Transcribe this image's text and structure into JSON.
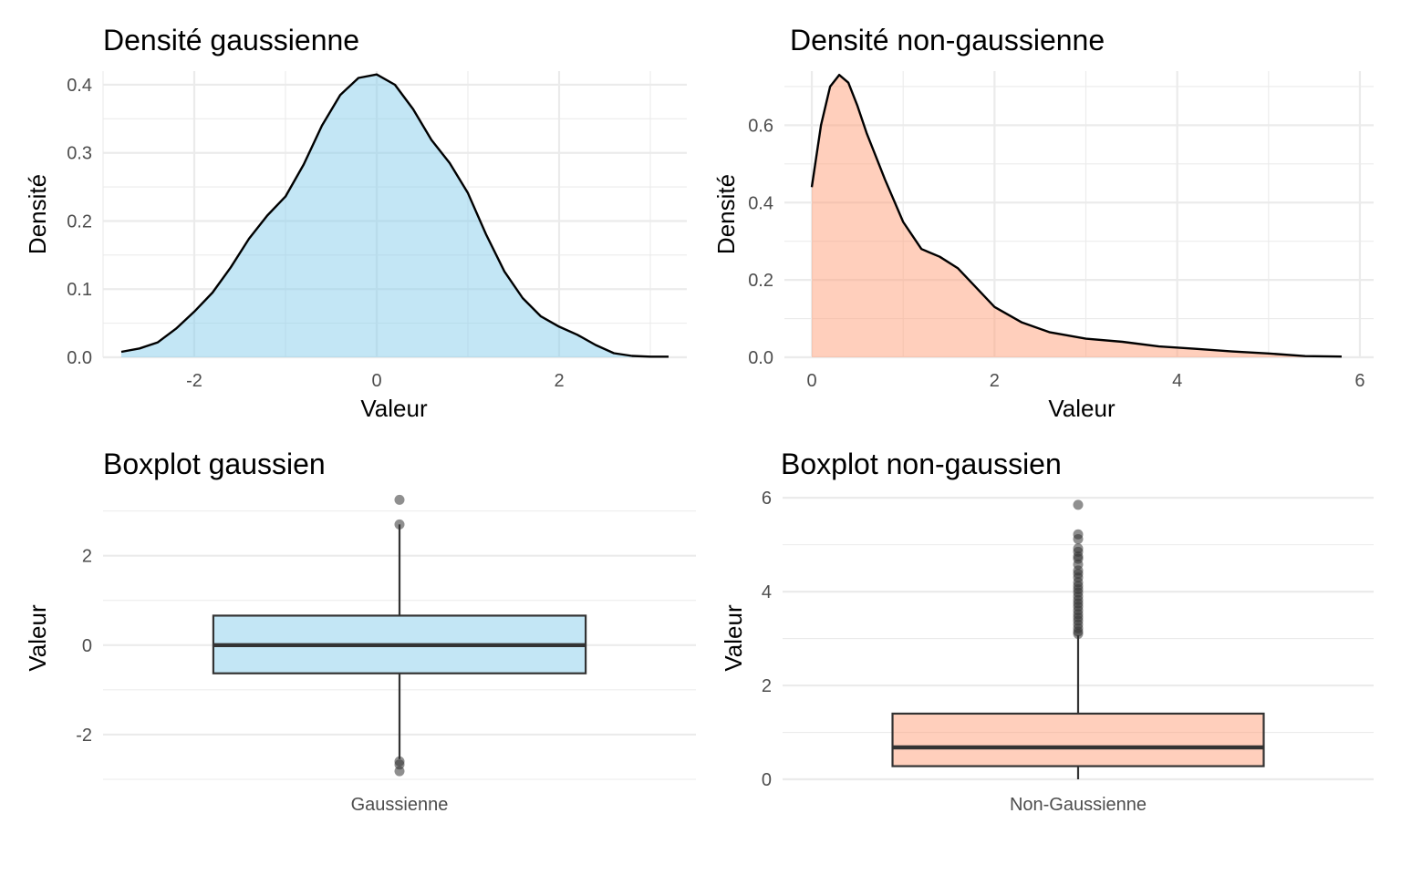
{
  "chart_data": [
    {
      "type": "area",
      "title": "Densité gaussienne",
      "xlabel": "Valeur",
      "ylabel": "Densité",
      "xlim": [
        -3.0,
        3.4
      ],
      "ylim": [
        0,
        0.42
      ],
      "x_ticks": [
        -2,
        0,
        2
      ],
      "x_tick_labels": [
        "-2",
        "0",
        "2"
      ],
      "y_ticks": [
        0.0,
        0.1,
        0.2,
        0.3,
        0.4
      ],
      "y_tick_labels": [
        "0.0",
        "0.1",
        "0.2",
        "0.3",
        "0.4"
      ],
      "fill_color": "#87CEEB",
      "grid": true,
      "series": [
        {
          "x": [
            -2.8,
            -2.6,
            -2.4,
            -2.2,
            -2.0,
            -1.8,
            -1.6,
            -1.4,
            -1.2,
            -1.0,
            -0.8,
            -0.6,
            -0.4,
            -0.2,
            0.0,
            0.2,
            0.4,
            0.6,
            0.8,
            1.0,
            1.2,
            1.4,
            1.6,
            1.8,
            2.0,
            2.2,
            2.4,
            2.6,
            2.8,
            3.0,
            3.2
          ],
          "y": [
            0.008,
            0.013,
            0.022,
            0.042,
            0.067,
            0.095,
            0.132,
            0.174,
            0.208,
            0.236,
            0.283,
            0.34,
            0.385,
            0.41,
            0.415,
            0.4,
            0.364,
            0.319,
            0.285,
            0.241,
            0.18,
            0.126,
            0.087,
            0.06,
            0.045,
            0.033,
            0.018,
            0.006,
            0.002,
            0.001,
            0.001
          ]
        }
      ]
    },
    {
      "type": "area",
      "title": "Densité non-gaussienne",
      "xlabel": "Valeur",
      "ylabel": "Densité",
      "xlim": [
        -0.3,
        6.15
      ],
      "ylim": [
        0,
        0.74
      ],
      "x_ticks": [
        0,
        2,
        4,
        6
      ],
      "x_tick_labels": [
        "0",
        "2",
        "4",
        "6"
      ],
      "y_ticks": [
        0.0,
        0.2,
        0.4,
        0.6
      ],
      "y_tick_labels": [
        "0.0",
        "0.2",
        "0.4",
        "0.6"
      ],
      "fill_color": "#FFA07A",
      "grid": true,
      "series": [
        {
          "x": [
            0.0,
            0.1,
            0.2,
            0.3,
            0.4,
            0.5,
            0.6,
            0.7,
            0.8,
            1.0,
            1.2,
            1.4,
            1.6,
            1.8,
            2.0,
            2.3,
            2.6,
            3.0,
            3.4,
            3.8,
            4.2,
            4.6,
            5.0,
            5.4,
            5.8
          ],
          "y": [
            0.44,
            0.6,
            0.7,
            0.73,
            0.71,
            0.65,
            0.58,
            0.52,
            0.46,
            0.35,
            0.28,
            0.26,
            0.23,
            0.18,
            0.13,
            0.09,
            0.065,
            0.048,
            0.04,
            0.028,
            0.022,
            0.015,
            0.01,
            0.003,
            0.002
          ]
        }
      ]
    },
    {
      "type": "boxplot",
      "title": "Boxplot gaussien",
      "xlabel": "",
      "ylabel": "Valeur",
      "ylim": [
        -3.0,
        3.4
      ],
      "y_ticks": [
        -2,
        0,
        2
      ],
      "y_tick_labels": [
        "-2",
        "0",
        "2"
      ],
      "categories": [
        "Gaussienne"
      ],
      "fill_color": "#87CEEB",
      "grid": true,
      "boxes": [
        {
          "category": "Gaussienne",
          "q1": -0.63,
          "median": 0.0,
          "q3": 0.66,
          "whisker_low": -2.55,
          "whisker_high": 2.7,
          "outliers": [
            3.25,
            2.7,
            -2.6,
            -2.67,
            -2.82
          ]
        }
      ]
    },
    {
      "type": "boxplot",
      "title": "Boxplot non-gaussien",
      "xlabel": "",
      "ylabel": "Valeur",
      "ylim": [
        0,
        6.1
      ],
      "y_ticks": [
        0,
        2,
        4,
        6
      ],
      "y_tick_labels": [
        "0",
        "2",
        "4",
        "6"
      ],
      "categories": [
        "Non-Gaussienne"
      ],
      "fill_color": "#FFA07A",
      "grid": true,
      "boxes": [
        {
          "category": "Non-Gaussienne",
          "q1": 0.28,
          "median": 0.68,
          "q3": 1.4,
          "whisker_low": 0.0,
          "whisker_high": 3.07,
          "outliers": [
            5.85,
            5.22,
            5.12,
            4.92,
            4.85,
            4.75,
            4.7,
            4.58,
            4.45,
            4.38,
            4.3,
            4.2,
            4.12,
            4.05,
            3.98,
            3.9,
            3.82,
            3.75,
            3.68,
            3.6,
            3.52,
            3.45,
            3.38,
            3.3,
            3.22,
            3.15,
            3.1
          ]
        }
      ]
    }
  ]
}
